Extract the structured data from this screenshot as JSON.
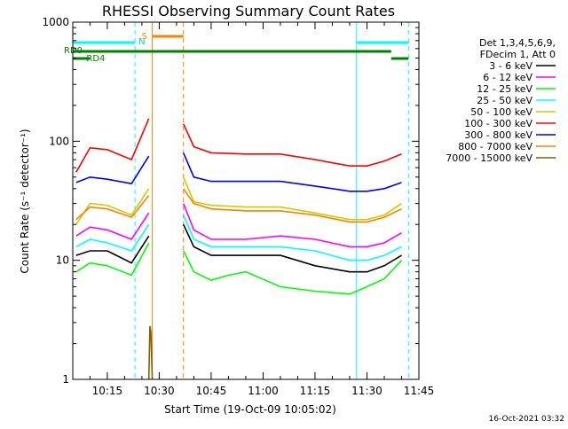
{
  "chart_data": {
    "type": "line",
    "title": "RHESSI Observing Summary Count Rates",
    "xlabel": "Start Time (19-Oct-09 10:05:02)",
    "ylabel": "Count Rate (s⁻¹ detector⁻¹)",
    "yscale": "log",
    "ylim": [
      1,
      1000
    ],
    "xlim": [
      "10:05:02",
      "11:45:00"
    ],
    "y_ticks": [
      "1",
      "10",
      "100",
      "1000"
    ],
    "x_ticks": [
      "10:15",
      "10:30",
      "10:45",
      "11:00",
      "11:15",
      "11:30",
      "11:45"
    ],
    "legend_header": [
      "Det 1,3,4,5,6,9,",
      "FDecim 1, Att 0"
    ],
    "footer": "16-Oct-2021 03:32",
    "annotations": {
      "night_label": "N",
      "saa_label": "S",
      "rd0_label": "RD0",
      "rd4_label": "RD4"
    },
    "flag_intervals": {
      "night": [
        [
          "10:05:02",
          "10:23:00"
        ],
        [
          "11:27:00",
          "11:42:00"
        ]
      ],
      "saa": [
        [
          "10:28:00",
          "10:37:00"
        ]
      ],
      "rd0": [
        [
          "10:05:02",
          "11:37:00"
        ]
      ],
      "rd4": [
        [
          "10:05:02",
          "10:10:00"
        ],
        [
          "11:37:00",
          "11:42:00"
        ]
      ]
    },
    "data_gap": [
      "10:28:00",
      "10:36:30"
    ],
    "series": [
      {
        "name": "3 - 6 keV",
        "color": "#000000",
        "x": [
          "10:06",
          "10:10",
          "10:15",
          "10:22",
          "10:27",
          "10:37",
          "10:40",
          "10:45",
          "10:55",
          "11:05",
          "11:15",
          "11:25",
          "11:30",
          "11:35",
          "11:40"
        ],
        "values": [
          11,
          12,
          12,
          9.5,
          16,
          20,
          13,
          11,
          11,
          11,
          9,
          8,
          8,
          9,
          11
        ]
      },
      {
        "name": "6 - 12 keV",
        "color": "#ff00ff",
        "x": [
          "10:06",
          "10:10",
          "10:15",
          "10:22",
          "10:27",
          "10:37",
          "10:40",
          "10:45",
          "10:55",
          "11:05",
          "11:15",
          "11:25",
          "11:30",
          "11:35",
          "11:40"
        ],
        "values": [
          16,
          19,
          18,
          15,
          25,
          30,
          18,
          15,
          15,
          16,
          15,
          13,
          13,
          14,
          17
        ]
      },
      {
        "name": "12 - 25 keV",
        "color": "#00ff00",
        "x": [
          "10:06",
          "10:10",
          "10:15",
          "10:22",
          "10:27",
          "10:37",
          "10:40",
          "10:45",
          "10:50",
          "10:55",
          "11:05",
          "11:15",
          "11:25",
          "11:30",
          "11:35",
          "11:40"
        ],
        "values": [
          8,
          9.5,
          9,
          7.5,
          14,
          12,
          8,
          6.8,
          7.5,
          8,
          6,
          5.5,
          5.2,
          6,
          7,
          10
        ]
      },
      {
        "name": "25 - 50 keV",
        "color": "#00ffff",
        "x": [
          "10:06",
          "10:10",
          "10:15",
          "10:22",
          "10:27",
          "10:37",
          "10:40",
          "10:45",
          "10:55",
          "11:05",
          "11:15",
          "11:25",
          "11:30",
          "11:35",
          "11:40"
        ],
        "values": [
          13,
          15,
          14,
          12,
          20,
          24,
          15,
          13,
          13,
          13,
          12,
          10,
          10,
          11,
          13
        ]
      },
      {
        "name": "50 - 100 keV",
        "color": "#cccc00",
        "x": [
          "10:06",
          "10:10",
          "10:15",
          "10:22",
          "10:27",
          "10:37",
          "10:40",
          "10:45",
          "10:55",
          "11:05",
          "11:15",
          "11:25",
          "11:30",
          "11:35",
          "11:40"
        ],
        "values": [
          20,
          30,
          29,
          24,
          40,
          50,
          31,
          29,
          28,
          28,
          25,
          22,
          22,
          24,
          30
        ]
      },
      {
        "name": "100 - 300 keV",
        "color": "#ff0000",
        "x": [
          "10:06",
          "10:10",
          "10:15",
          "10:22",
          "10:27",
          "10:37",
          "10:40",
          "10:45",
          "10:55",
          "11:05",
          "11:15",
          "11:25",
          "11:30",
          "11:35",
          "11:40"
        ],
        "values": [
          55,
          88,
          85,
          70,
          155,
          140,
          90,
          80,
          78,
          78,
          70,
          62,
          62,
          68,
          78
        ]
      },
      {
        "name": "300 - 800 keV",
        "color": "#0000ff",
        "x": [
          "10:06",
          "10:10",
          "10:15",
          "10:22",
          "10:27",
          "10:37",
          "10:40",
          "10:45",
          "10:55",
          "11:05",
          "11:15",
          "11:25",
          "11:30",
          "11:35",
          "11:40"
        ],
        "values": [
          45,
          50,
          48,
          44,
          75,
          80,
          50,
          46,
          46,
          46,
          42,
          38,
          38,
          40,
          45
        ]
      },
      {
        "name": "800 - 7000 keV",
        "color": "#ff8000",
        "x": [
          "10:06",
          "10:10",
          "10:15",
          "10:22",
          "10:27",
          "10:37",
          "10:40",
          "10:45",
          "10:55",
          "11:05",
          "11:15",
          "11:25",
          "11:30",
          "11:35",
          "11:40"
        ],
        "values": [
          22,
          28,
          27,
          23,
          35,
          40,
          30,
          27,
          26,
          26,
          24,
          21,
          21,
          23,
          27
        ]
      },
      {
        "name": "7000 - 15000 keV",
        "color": "#806000",
        "x": [
          "10:27",
          "10:27.3",
          "10:27.6",
          "10:28"
        ],
        "values": [
          1,
          2.8,
          2.5,
          1
        ]
      }
    ]
  }
}
